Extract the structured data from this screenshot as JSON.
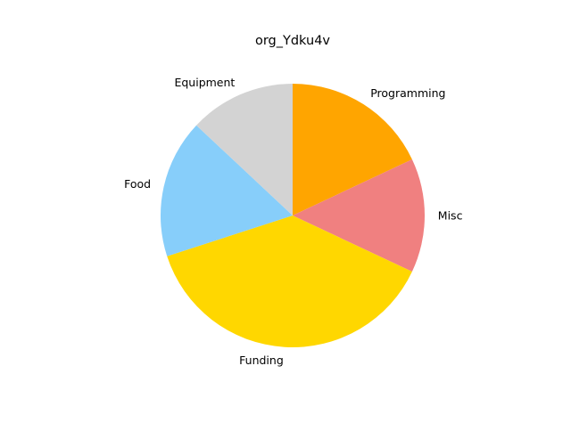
{
  "chart_data": {
    "type": "pie",
    "title": "org_Ydku4v",
    "start_angle_deg": 90,
    "direction": "clockwise",
    "slices": [
      {
        "label": "Programming",
        "value": 18,
        "color": "#FFA500"
      },
      {
        "label": "Misc",
        "value": 14,
        "color": "#F08080"
      },
      {
        "label": "Funding",
        "value": 38,
        "color": "#FFD700"
      },
      {
        "label": "Food",
        "value": 17,
        "color": "#87CEFA"
      },
      {
        "label": "Equipment",
        "value": 13,
        "color": "#D3D3D3"
      }
    ]
  }
}
